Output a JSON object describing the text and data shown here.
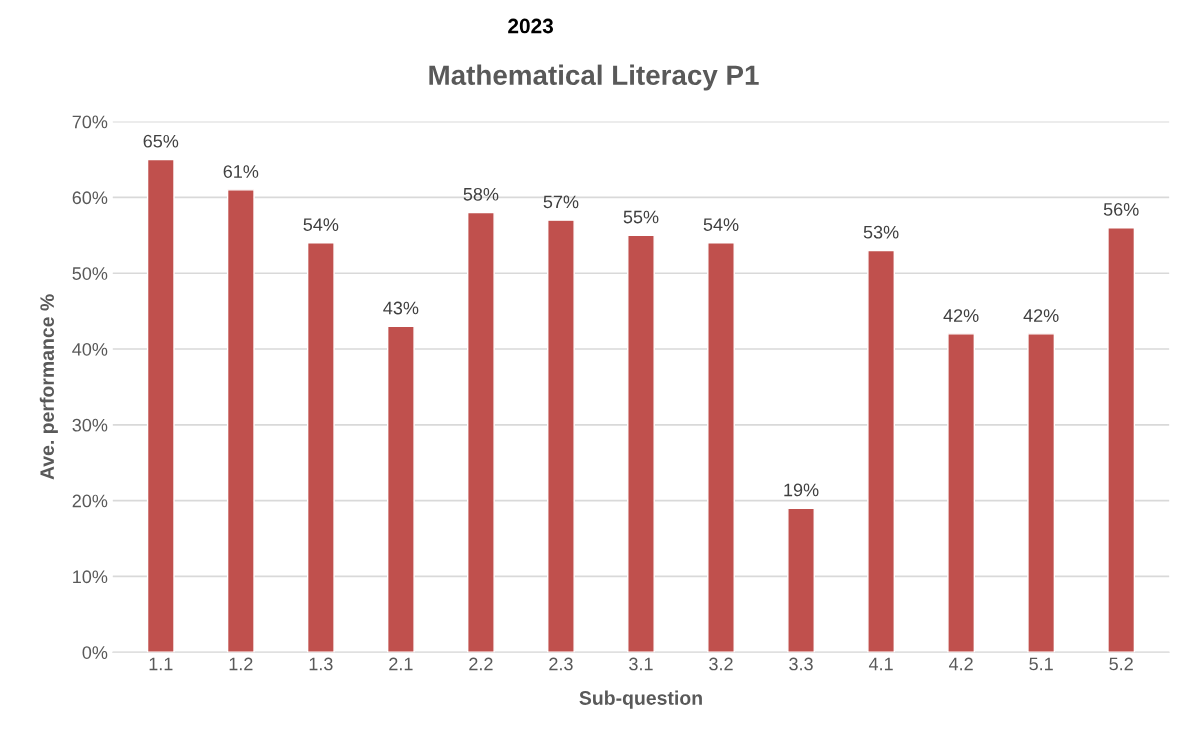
{
  "chart_data": {
    "type": "bar",
    "title": "Mathematical Literacy P1",
    "subtitle": "2023",
    "xlabel": "Sub-question",
    "ylabel": "Ave. performance %",
    "categories": [
      "1.1",
      "1.2",
      "1.3",
      "2.1",
      "2.2",
      "2.3",
      "3.1",
      "3.2",
      "3.3",
      "4.1",
      "4.2",
      "5.1",
      "5.2"
    ],
    "values": [
      65,
      61,
      54,
      43,
      58,
      57,
      55,
      54,
      19,
      53,
      42,
      42,
      56
    ],
    "value_labels": [
      "65%",
      "61%",
      "54%",
      "43%",
      "58%",
      "57%",
      "55%",
      "54%",
      "19%",
      "53%",
      "42%",
      "42%",
      "56%"
    ],
    "color": "#c0504d",
    "ylim": [
      0,
      70
    ],
    "yticks": [
      {
        "value": 0,
        "label": "0%"
      },
      {
        "value": 10,
        "label": "10%"
      },
      {
        "value": 20,
        "label": "20%"
      },
      {
        "value": 30,
        "label": "30%"
      },
      {
        "value": 40,
        "label": "40%"
      },
      {
        "value": 50,
        "label": "50%"
      },
      {
        "value": 60,
        "label": "60%"
      },
      {
        "value": 70,
        "label": "70%"
      }
    ],
    "grid": "y",
    "legend": false
  }
}
